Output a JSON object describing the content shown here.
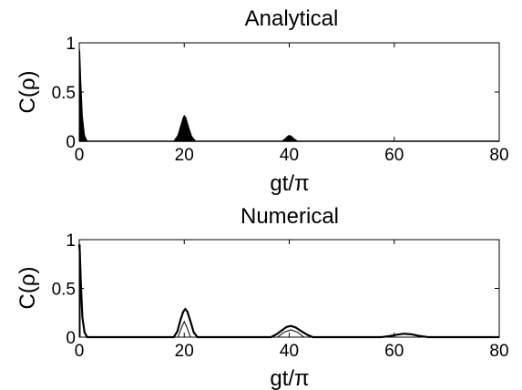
{
  "chart_data": [
    {
      "type": "line",
      "title": "Analytical",
      "xlabel": "gt/π",
      "ylabel": "C(ρ)",
      "xlim": [
        0,
        80
      ],
      "ylim": [
        0,
        1
      ],
      "xticks": [
        "0",
        "20",
        "40",
        "60",
        "80"
      ],
      "yticks": [
        "0",
        "0.5",
        "1"
      ],
      "grid": false,
      "legend": "none",
      "series": [
        {
          "style": "dense-oscillating-filled-envelope",
          "color": "#000000",
          "envelope_x": [
            0,
            0.1,
            0.3,
            0.6,
            1.0,
            1.5,
            18.0,
            18.8,
            19.4,
            19.8,
            20.0,
            20.3,
            20.8,
            21.4,
            22.2,
            38.6,
            39.2,
            39.7,
            40.0,
            40.4,
            40.9,
            41.6,
            80
          ],
          "envelope_y": [
            0.95,
            0.9,
            0.6,
            0.25,
            0.06,
            0.0,
            0.0,
            0.06,
            0.17,
            0.24,
            0.26,
            0.24,
            0.15,
            0.05,
            0.0,
            0.0,
            0.025,
            0.05,
            0.06,
            0.05,
            0.025,
            0.0,
            0.0
          ]
        }
      ]
    },
    {
      "type": "line",
      "title": "Numerical",
      "xlabel": "gt/π",
      "ylabel": "C(ρ)",
      "xlim": [
        0,
        80
      ],
      "ylim": [
        0,
        1
      ],
      "xticks": [
        "0",
        "20",
        "40",
        "60",
        "80"
      ],
      "yticks": [
        "0",
        "0.5",
        "1"
      ],
      "grid": false,
      "legend": "none",
      "series": [
        {
          "style": "oscillating-envelope",
          "color": "#000000",
          "envelope_x": [
            0,
            0.1,
            0.3,
            0.6,
            1.0,
            1.5,
            18.0,
            18.7,
            19.3,
            19.8,
            20.2,
            20.6,
            21.2,
            21.8,
            22.5,
            36.5,
            37.6,
            38.6,
            39.5,
            40.3,
            41.2,
            42.2,
            43.4,
            44.5,
            57.5,
            59.0,
            60.5,
            61.8,
            63.2,
            64.8,
            66.5,
            80
          ],
          "envelope_y": [
            0.95,
            0.88,
            0.55,
            0.2,
            0.05,
            0.0,
            0.0,
            0.06,
            0.18,
            0.26,
            0.29,
            0.26,
            0.16,
            0.05,
            0.0,
            0.0,
            0.03,
            0.07,
            0.105,
            0.115,
            0.1,
            0.065,
            0.025,
            0.0,
            0.0,
            0.01,
            0.025,
            0.035,
            0.03,
            0.012,
            0.0,
            0.0
          ],
          "inner_x": [
            18.8,
            19.5,
            20.0,
            20.5,
            21.2,
            37.8,
            39.0,
            40.3,
            41.6,
            42.8
          ],
          "inner_y": [
            0.0,
            0.1,
            0.16,
            0.1,
            0.0,
            0.0,
            0.05,
            0.075,
            0.05,
            0.0
          ]
        }
      ]
    }
  ]
}
